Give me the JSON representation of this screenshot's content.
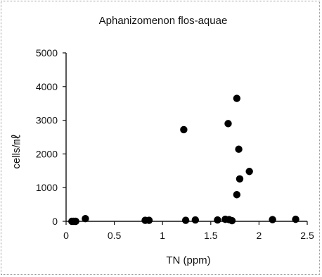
{
  "chart_data": {
    "type": "scatter",
    "title": "Aphanizomenon flos-aquae",
    "xlabel": "TN (ppm)",
    "ylabel": "cells/㎖",
    "xlim": [
      0,
      2.5
    ],
    "ylim": [
      0,
      5000
    ],
    "x_ticks": [
      "0",
      "0.5",
      "1",
      "1.5",
      "2",
      "2.5"
    ],
    "y_ticks": [
      "0",
      "1000",
      "2000",
      "3000",
      "4000",
      "5000"
    ],
    "grid": false,
    "legend": "none",
    "marker_color": "#000000",
    "series": [
      {
        "points": [
          {
            "x": 0.06,
            "y": 0
          },
          {
            "x": 0.08,
            "y": 0
          },
          {
            "x": 0.1,
            "y": 0
          },
          {
            "x": 0.2,
            "y": 80
          },
          {
            "x": 0.82,
            "y": 30
          },
          {
            "x": 0.86,
            "y": 30
          },
          {
            "x": 1.22,
            "y": 2720
          },
          {
            "x": 1.24,
            "y": 30
          },
          {
            "x": 1.34,
            "y": 40
          },
          {
            "x": 1.57,
            "y": 40
          },
          {
            "x": 1.65,
            "y": 60
          },
          {
            "x": 1.68,
            "y": 2900
          },
          {
            "x": 1.69,
            "y": 50
          },
          {
            "x": 1.72,
            "y": 20
          },
          {
            "x": 1.77,
            "y": 3650
          },
          {
            "x": 1.79,
            "y": 2140
          },
          {
            "x": 1.8,
            "y": 1260
          },
          {
            "x": 1.77,
            "y": 790
          },
          {
            "x": 1.9,
            "y": 1480
          },
          {
            "x": 2.14,
            "y": 50
          },
          {
            "x": 2.38,
            "y": 60
          }
        ]
      }
    ]
  }
}
